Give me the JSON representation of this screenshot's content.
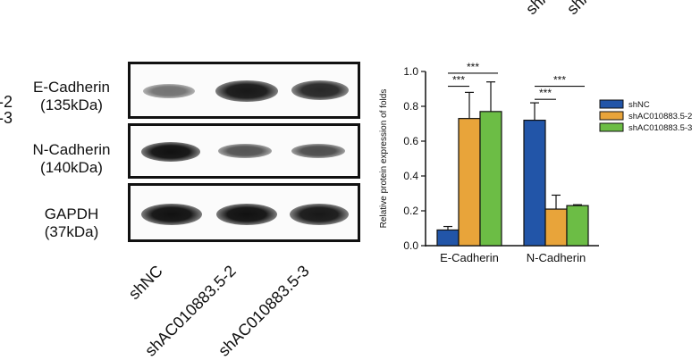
{
  "top_crop": {
    "a": "shAC",
    "b": "shAC"
  },
  "left_crop": {
    "a": "-2",
    "b": "-3"
  },
  "blot": {
    "rows": [
      {
        "name": "E-Cadherin",
        "kda": "(135kDa)",
        "bands": [
          0.35,
          0.95,
          0.85
        ]
      },
      {
        "name": "N-Cadherin",
        "kda": "(140kDa)",
        "bands": [
          1.0,
          0.55,
          0.6
        ]
      },
      {
        "name": "GAPDH",
        "kda": "(37kDa)",
        "bands": [
          1.0,
          1.0,
          0.95
        ]
      }
    ],
    "lanes": [
      "shNC",
      "shAC010883.5-2",
      "shAC010883.5-3"
    ]
  },
  "chart_data": {
    "type": "bar",
    "ylabel": "Relative protein expression of folds",
    "ylim": [
      0,
      1.0
    ],
    "yticks": [
      "0.0",
      "0.2",
      "0.4",
      "0.6",
      "0.8",
      "1.0"
    ],
    "categories": [
      "E-Cadherin",
      "N-Cadherin"
    ],
    "legend_position": "right",
    "series": [
      {
        "name": "shNC",
        "color": "#2255a8",
        "values": [
          0.09,
          0.72
        ],
        "errors": [
          0.02,
          0.1
        ]
      },
      {
        "name": "shAC010883.5-2",
        "color": "#e8a43a",
        "values": [
          0.73,
          0.21
        ],
        "errors": [
          0.15,
          0.08
        ]
      },
      {
        "name": "shAC010883.5-3",
        "color": "#6cbd45",
        "values": [
          0.77,
          0.23
        ],
        "errors": [
          0.17,
          0.005
        ]
      }
    ],
    "significance": [
      "***",
      "***",
      "***",
      "***"
    ]
  }
}
